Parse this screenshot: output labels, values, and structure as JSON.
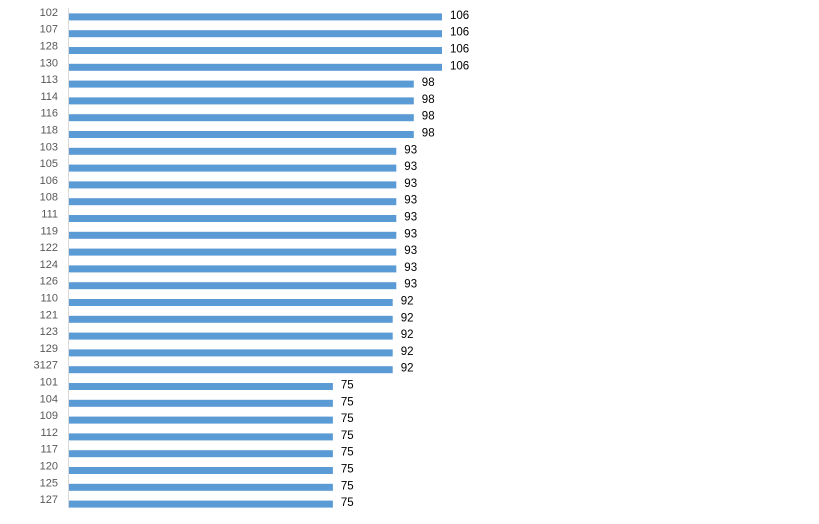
{
  "chart_data": {
    "type": "bar",
    "orientation": "horizontal",
    "title": "",
    "xlabel": "",
    "ylabel": "",
    "grid": false,
    "legend": "none",
    "bar_color": "#5b9bd5",
    "xlim": [
      0,
      106
    ],
    "categories": [
      "102",
      "107",
      "128",
      "130",
      "113",
      "114",
      "116",
      "118",
      "103",
      "105",
      "106",
      "108",
      "111",
      "119",
      "122",
      "124",
      "126",
      "110",
      "121",
      "123",
      "129",
      "3127",
      "101",
      "104",
      "109",
      "112",
      "117",
      "120",
      "125",
      "127"
    ],
    "values": [
      106,
      106,
      106,
      106,
      98,
      98,
      98,
      98,
      93,
      93,
      93,
      93,
      93,
      93,
      93,
      93,
      93,
      92,
      92,
      92,
      92,
      92,
      75,
      75,
      75,
      75,
      75,
      75,
      75,
      75
    ]
  }
}
